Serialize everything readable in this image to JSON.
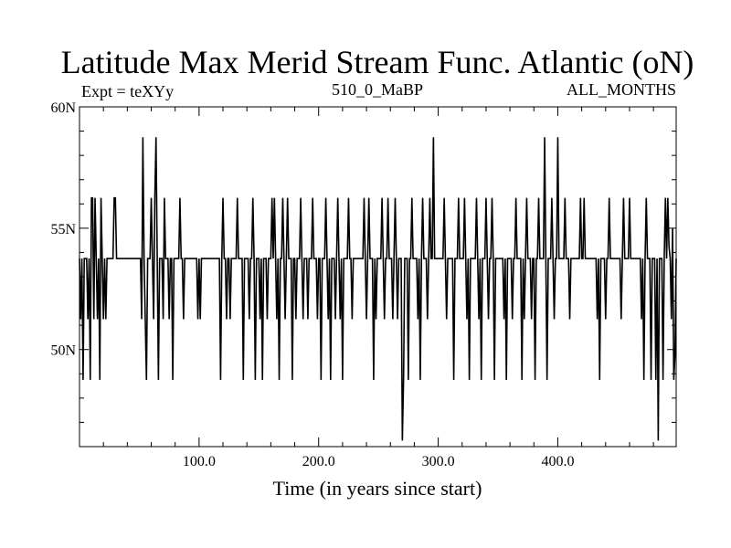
{
  "chart_data": {
    "type": "line",
    "title": "Latitude Max Merid Stream Func. Atlantic (oN)",
    "subtitle_left": "Expt = teXYy",
    "subtitle_center": "510_0_MaBP",
    "subtitle_right": "ALL_MONTHS",
    "xlabel": "Time (in years since start)",
    "ylabel": "",
    "xlim": [
      0,
      499
    ],
    "ylim": [
      46.0,
      60.0
    ],
    "x_ticks": [
      {
        "value": 100,
        "label": "100.0"
      },
      {
        "value": 200,
        "label": "200.0"
      },
      {
        "value": 300,
        "label": "300.0"
      },
      {
        "value": 400,
        "label": "400.0"
      }
    ],
    "y_ticks": [
      {
        "value": 50,
        "label": "50N"
      },
      {
        "value": 55,
        "label": "55N"
      },
      {
        "value": 60,
        "label": "60N"
      }
    ],
    "x_minor_step": 20,
    "y_minor_step": 1,
    "grid": false,
    "series": [
      {
        "color": "#000000",
        "baseline": 53.75,
        "events": [
          [
            1,
            51.25
          ],
          [
            3,
            48.75
          ],
          [
            5,
            53.75
          ],
          [
            7,
            51.25
          ],
          [
            9,
            48.75
          ],
          [
            10,
            56.25
          ],
          [
            11,
            56.25
          ],
          [
            12,
            51.25
          ],
          [
            13,
            56.25
          ],
          [
            14,
            53.75
          ],
          [
            15,
            51.25
          ],
          [
            17,
            48.75
          ],
          [
            18,
            56.25
          ],
          [
            19,
            53.75
          ],
          [
            20,
            51.25
          ],
          [
            21,
            53.75
          ],
          [
            22,
            51.25
          ],
          [
            23,
            53.75
          ],
          [
            29,
            56.25
          ],
          [
            30,
            56.25
          ],
          [
            52,
            51.25
          ],
          [
            53,
            58.75
          ],
          [
            54,
            53.75
          ],
          [
            55,
            51.25
          ],
          [
            56,
            48.75
          ],
          [
            57,
            53.75
          ],
          [
            60,
            56.25
          ],
          [
            62,
            51.25
          ],
          [
            63,
            56.25
          ],
          [
            64,
            58.75
          ],
          [
            65,
            53.75
          ],
          [
            66,
            48.75
          ],
          [
            68,
            53.75
          ],
          [
            70,
            51.25
          ],
          [
            71,
            56.25
          ],
          [
            75,
            51.25
          ],
          [
            76,
            53.75
          ],
          [
            78,
            48.75
          ],
          [
            84,
            56.25
          ],
          [
            85,
            53.75
          ],
          [
            87,
            51.25
          ],
          [
            99,
            51.25
          ],
          [
            100,
            53.75
          ],
          [
            101,
            51.25
          ],
          [
            118,
            48.75
          ],
          [
            119,
            53.75
          ],
          [
            120,
            56.25
          ],
          [
            123,
            51.25
          ],
          [
            125,
            53.75
          ],
          [
            126,
            51.25
          ],
          [
            132,
            56.25
          ],
          [
            133,
            53.75
          ],
          [
            137,
            48.75
          ],
          [
            140,
            53.75
          ],
          [
            142,
            51.25
          ],
          [
            145,
            56.25
          ],
          [
            147,
            48.75
          ],
          [
            149,
            53.75
          ],
          [
            151,
            51.25
          ],
          [
            153,
            48.75
          ],
          [
            155,
            53.75
          ],
          [
            157,
            51.25
          ],
          [
            159,
            53.75
          ],
          [
            161,
            56.25
          ],
          [
            163,
            56.25
          ],
          [
            165,
            51.25
          ],
          [
            167,
            48.75
          ],
          [
            168,
            53.75
          ],
          [
            170,
            56.25
          ],
          [
            172,
            51.25
          ],
          [
            174,
            56.25
          ],
          [
            175,
            53.75
          ],
          [
            178,
            48.75
          ],
          [
            180,
            53.75
          ],
          [
            181,
            51.25
          ],
          [
            184,
            53.75
          ],
          [
            185,
            56.25
          ],
          [
            187,
            51.25
          ],
          [
            189,
            53.75
          ],
          [
            191,
            51.25
          ],
          [
            193,
            53.75
          ],
          [
            195,
            56.25
          ],
          [
            199,
            51.25
          ],
          [
            202,
            48.75
          ],
          [
            204,
            53.75
          ],
          [
            206,
            56.25
          ],
          [
            208,
            51.25
          ],
          [
            210,
            48.75
          ],
          [
            212,
            53.75
          ],
          [
            214,
            51.25
          ],
          [
            216,
            56.25
          ],
          [
            218,
            51.25
          ],
          [
            220,
            48.75
          ],
          [
            222,
            53.75
          ],
          [
            225,
            56.25
          ],
          [
            228,
            51.25
          ],
          [
            236,
            53.75
          ],
          [
            238,
            56.25
          ],
          [
            240,
            51.25
          ],
          [
            242,
            56.25
          ],
          [
            244,
            53.75
          ],
          [
            246,
            48.75
          ],
          [
            248,
            51.25
          ],
          [
            250,
            53.75
          ],
          [
            253,
            56.25
          ],
          [
            255,
            51.25
          ],
          [
            258,
            56.25
          ],
          [
            260,
            53.75
          ],
          [
            262,
            51.25
          ],
          [
            264,
            56.25
          ],
          [
            266,
            51.25
          ],
          [
            270,
            46.25
          ],
          [
            271,
            48.75
          ],
          [
            272,
            53.75
          ],
          [
            275,
            48.75
          ],
          [
            278,
            56.25
          ],
          [
            280,
            53.75
          ],
          [
            283,
            51.25
          ],
          [
            285,
            48.75
          ],
          [
            287,
            56.25
          ],
          [
            289,
            53.75
          ],
          [
            291,
            51.25
          ],
          [
            293,
            56.25
          ],
          [
            296,
            58.75
          ],
          [
            302,
            53.75
          ],
          [
            305,
            56.25
          ],
          [
            307,
            51.25
          ],
          [
            313,
            48.75
          ],
          [
            317,
            56.25
          ],
          [
            320,
            53.75
          ],
          [
            322,
            56.25
          ],
          [
            324,
            51.25
          ],
          [
            326,
            48.75
          ],
          [
            328,
            53.75
          ],
          [
            332,
            56.25
          ],
          [
            334,
            51.25
          ],
          [
            336,
            48.75
          ],
          [
            338,
            53.75
          ],
          [
            340,
            56.25
          ],
          [
            342,
            51.25
          ],
          [
            345,
            56.25
          ],
          [
            347,
            48.75
          ],
          [
            349,
            53.75
          ],
          [
            355,
            51.25
          ],
          [
            357,
            48.75
          ],
          [
            360,
            53.75
          ],
          [
            362,
            51.25
          ],
          [
            365,
            56.25
          ],
          [
            367,
            53.75
          ],
          [
            370,
            48.75
          ],
          [
            372,
            51.25
          ],
          [
            374,
            56.25
          ],
          [
            376,
            53.75
          ],
          [
            378,
            51.25
          ],
          [
            381,
            48.75
          ],
          [
            384,
            56.25
          ],
          [
            386,
            53.75
          ],
          [
            389,
            58.75
          ],
          [
            391,
            48.75
          ],
          [
            395,
            56.25
          ],
          [
            397,
            51.25
          ],
          [
            400,
            58.75
          ],
          [
            403,
            53.75
          ],
          [
            406,
            56.25
          ],
          [
            410,
            51.25
          ],
          [
            413,
            53.75
          ],
          [
            419,
            56.25
          ],
          [
            422,
            56.25
          ],
          [
            423,
            53.75
          ],
          [
            433,
            51.25
          ],
          [
            435,
            48.75
          ],
          [
            437,
            53.75
          ],
          [
            440,
            51.25
          ],
          [
            443,
            56.25
          ],
          [
            445,
            53.75
          ],
          [
            453,
            51.25
          ],
          [
            455,
            56.25
          ],
          [
            457,
            53.75
          ],
          [
            460,
            56.25
          ],
          [
            463,
            53.75
          ],
          [
            470,
            51.25
          ],
          [
            472,
            48.75
          ],
          [
            474,
            56.25
          ],
          [
            476,
            53.75
          ],
          [
            478,
            48.75
          ],
          [
            480,
            53.75
          ],
          [
            482,
            48.75
          ],
          [
            484,
            46.25
          ],
          [
            486,
            53.75
          ],
          [
            488,
            48.75
          ],
          [
            490,
            56.25
          ],
          [
            491,
            53.75
          ],
          [
            492,
            56.25
          ],
          [
            493,
            54.25
          ],
          [
            494,
            53.75
          ],
          [
            495,
            51.25
          ],
          [
            496,
            55.0
          ],
          [
            497,
            48.75
          ],
          [
            498,
            49.75
          ]
        ]
      }
    ]
  }
}
